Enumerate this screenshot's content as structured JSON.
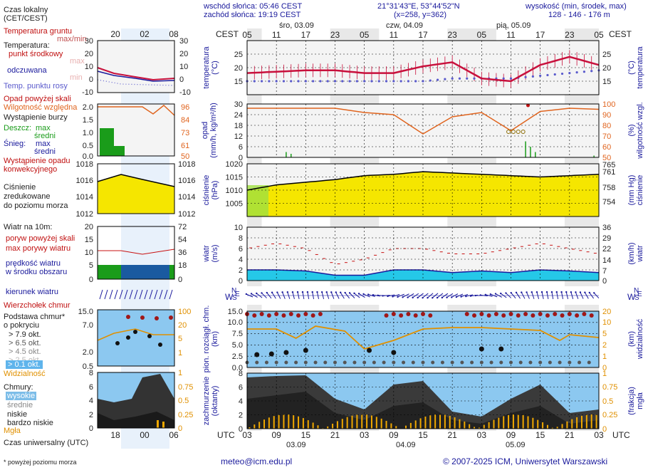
{
  "header": {
    "sunrise": "wschód słońca: 05:46 CEST",
    "sunset": "zachód słońca: 19:19 CEST",
    "coords": "21°31'43\"E, 53°44'52\"N",
    "grid": "(x=258,  y=362)",
    "height_label": "wysokość (min, środek, max)",
    "height_values": "128 - 146 - 176 m"
  },
  "time_axis": {
    "cest_label": "CEST",
    "utc_label": "UTC",
    "days_top": [
      "śro, 03.09",
      "czw, 04.09",
      "pią, 05.09"
    ],
    "cest_hours": [
      "05",
      "11",
      "17",
      "23",
      "05",
      "11",
      "17",
      "23",
      "05",
      "11",
      "17",
      "23",
      "05"
    ],
    "utc_hours": [
      "03",
      "09",
      "15",
      "21",
      "03",
      "09",
      "15",
      "21",
      "03",
      "09",
      "15",
      "21",
      "03"
    ],
    "dates_bottom": [
      "03.09",
      "04.09",
      "05.09"
    ],
    "legend_top_hours": [
      "20",
      "02",
      "08"
    ],
    "legend_bottom_hours": [
      "18",
      "00",
      "06"
    ]
  },
  "legend": {
    "local_time": "Czas lokalny",
    "local_time_sub": "(CET/CEST)",
    "ground_temp": "Temperatura gruntu",
    "maxmin": "max/min",
    "temperature": "Temperatura:",
    "midpoint": "punkt środkowy",
    "max": "max",
    "min": "min",
    "feels": "odczuwana",
    "dewpoint": "Temp. punktu rosy",
    "precip_over_scale": "Opad powyżej skali",
    "humidity": "Wilgotność względna",
    "storm": "Wystąpienie burzy",
    "rain": "Deszcz:",
    "mean": "średni",
    "snow": "Śnieg:",
    "precip_occurrence_1": "Wystąpienie opadu",
    "precip_occurrence_2": "konwekcyjnego",
    "pressure_1": "Ciśnienie",
    "pressure_2": "zredukowane",
    "pressure_3": "do poziomu morza",
    "wind_at": "Wiatr na 10m:",
    "gust_over": "poryw powyżej skali",
    "gust_max": "max porywy wiatru",
    "wind_speed_1": "prędkość wiatru",
    "wind_speed_2": "w środku obszaru",
    "wind_dir": "kierunek wiatru",
    "cloud_top": "Wierzchołek chmur",
    "cloud_base_1": "Podstawa chmur*",
    "cloud_base_2": "o pokryciu",
    "okt": [
      "> 7.9 okt.",
      "> 6.5 okt.",
      "> 4.5 okt.",
      "> 2.5 okt.",
      "> 0.1 okt."
    ],
    "visibility": "Widzialność",
    "clouds": "Chmury:",
    "high": "wysokie",
    "medium": "średnie",
    "low": "niskie",
    "very_low": "bardzo niskie",
    "fog": "Mgła",
    "utc_time": "Czas uniwersalny (UTC)",
    "footnote": "* powyżej poziomu morza"
  },
  "axes": {
    "temp_label": "temperatura",
    "temp_unit": "(°C)",
    "precip_label": "opad",
    "precip_unit": "(mm/h, kg/m²/h)",
    "humidity_label": "wilgotność wzgl.",
    "humidity_unit": "(%)",
    "pressure_label": "ciśnienie",
    "pressure_unit": "(hPa)",
    "pressure_mm_unit": "(mm Hg)",
    "wind_label": "wiatr",
    "wind_ms": "(m/s)",
    "wind_kmh": "(km/h)",
    "cloud_label": "pion. rozciągł. chm.",
    "cloud_unit": "(km)",
    "visibility_label": "widzialność",
    "visibility_unit": "(km)",
    "cover_label": "zachmurzenie",
    "cover_unit": "(oktanty)",
    "fog_label": "mgła",
    "fog_unit": "(frakcja)",
    "compass_n": "N",
    "compass_w": "W",
    "compass_e": "E",
    "compass_s": "S"
  },
  "footer": {
    "email": "meteo@icm.edu.pl",
    "copyright": "© 2007-2025 ICM, Uniwersytet Warszawski"
  },
  "colors": {
    "temp_line": "#c8103c",
    "dew_point": "#5a5acc",
    "humidity_line": "#e0641e",
    "pressure_fill": "#f5e600",
    "wind_fill": "#1e9fd8",
    "gust": "#c81010",
    "sky": "#8cc8f0",
    "night_band": "#e6e6e6"
  },
  "chart_data": [
    {
      "type": "line",
      "name": "temperature",
      "x_hours_utc": [
        0,
        6,
        12,
        18,
        24,
        30,
        36,
        42,
        48,
        54,
        60,
        66,
        72
      ],
      "y_series": [
        {
          "name": "punkt środkowy",
          "values": [
            18,
            18.5,
            19,
            19,
            18,
            18,
            20.5,
            22,
            16,
            15,
            21,
            24,
            21
          ]
        },
        {
          "name": "Temp. punktu rosy",
          "values": [
            15,
            15,
            15,
            15,
            15,
            15,
            15,
            16,
            16,
            16,
            17,
            18,
            19
          ]
        }
      ],
      "ylim": [
        10,
        30
      ]
    },
    {
      "type": "line",
      "name": "humidity",
      "x_hours_utc": [
        0,
        6,
        12,
        18,
        24,
        30,
        36,
        42,
        48,
        54,
        60,
        66,
        72
      ],
      "values": [
        96,
        96,
        96,
        96,
        92,
        90,
        72,
        88,
        92,
        75,
        93,
        96,
        95
      ],
      "ylim": [
        50,
        100
      ]
    },
    {
      "type": "area",
      "name": "pressure",
      "x_hours_utc": [
        0,
        6,
        12,
        18,
        24,
        30,
        36,
        42,
        48,
        54,
        60,
        66,
        72
      ],
      "values": [
        1010,
        1012,
        1013,
        1014,
        1015.5,
        1016,
        1017,
        1016.5,
        1016,
        1015.5,
        1015,
        1015.5,
        1016
      ],
      "ylim": [
        1000,
        1020
      ]
    },
    {
      "type": "area",
      "name": "wind",
      "x_hours_utc": [
        0,
        6,
        12,
        18,
        24,
        30,
        36,
        42,
        48,
        54,
        60,
        66,
        72
      ],
      "values": [
        2,
        2,
        1.8,
        1,
        1,
        2,
        2,
        1.5,
        1.8,
        1.5,
        2,
        1.8,
        1.5
      ],
      "gusts": [
        6,
        7,
        6,
        3,
        4,
        6,
        6,
        5,
        5,
        6,
        7,
        6,
        5
      ],
      "ylim": [
        0,
        10
      ]
    }
  ]
}
